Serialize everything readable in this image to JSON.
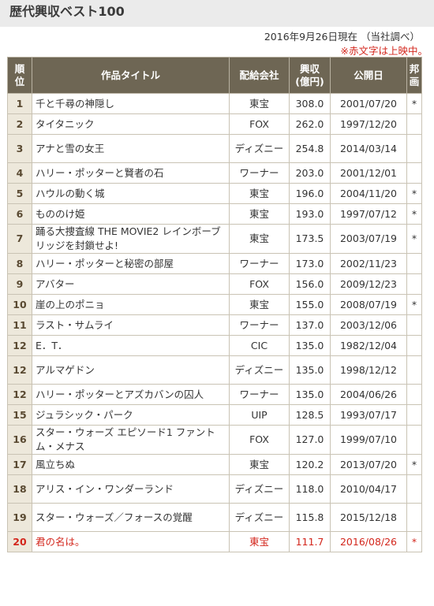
{
  "page": {
    "title": "歴代興収ベスト100",
    "as_of": "2016年9月26日現在 （当社調べ）",
    "note": "※赤文字は上映中。"
  },
  "table": {
    "headers": {
      "rank_line1": "順",
      "rank_line2": "位",
      "title": "作品タイトル",
      "distributor": "配給会社",
      "revenue_line1": "興収",
      "revenue_line2": "(億円)",
      "release": "公開日",
      "jp_line1": "邦",
      "jp_line2": "画"
    },
    "rows": [
      {
        "rank": "1",
        "title": "千と千尋の神隠し",
        "dist": "東宝",
        "rev": "308.0",
        "date": "2001/07/20",
        "jp": "*",
        "red": false
      },
      {
        "rank": "2",
        "title": "タイタニック",
        "dist": "FOX",
        "rev": "262.0",
        "date": "1997/12/20",
        "jp": "",
        "red": false
      },
      {
        "rank": "3",
        "title": "アナと雪の女王",
        "dist": "ディズニー",
        "rev": "254.8",
        "date": "2014/03/14",
        "jp": "",
        "red": false
      },
      {
        "rank": "4",
        "title": "ハリー・ポッターと賢者の石",
        "dist": "ワーナー",
        "rev": "203.0",
        "date": "2001/12/01",
        "jp": "",
        "red": false
      },
      {
        "rank": "5",
        "title": "ハウルの動く城",
        "dist": "東宝",
        "rev": "196.0",
        "date": "2004/11/20",
        "jp": "*",
        "red": false
      },
      {
        "rank": "6",
        "title": "もののけ姫",
        "dist": "東宝",
        "rev": "193.0",
        "date": "1997/07/12",
        "jp": "*",
        "red": false
      },
      {
        "rank": "7",
        "title": "踊る大捜査線 THE MOVIE2 レインボーブリッジを封鎖せよ!",
        "dist": "東宝",
        "rev": "173.5",
        "date": "2003/07/19",
        "jp": "*",
        "red": false
      },
      {
        "rank": "8",
        "title": "ハリー・ポッターと秘密の部屋",
        "dist": "ワーナー",
        "rev": "173.0",
        "date": "2002/11/23",
        "jp": "",
        "red": false
      },
      {
        "rank": "9",
        "title": "アバター",
        "dist": "FOX",
        "rev": "156.0",
        "date": "2009/12/23",
        "jp": "",
        "red": false
      },
      {
        "rank": "10",
        "title": "崖の上のポニョ",
        "dist": "東宝",
        "rev": "155.0",
        "date": "2008/07/19",
        "jp": "*",
        "red": false
      },
      {
        "rank": "11",
        "title": "ラスト・サムライ",
        "dist": "ワーナー",
        "rev": "137.0",
        "date": "2003/12/06",
        "jp": "",
        "red": false
      },
      {
        "rank": "12",
        "title": "E．T．",
        "dist": "CIC",
        "rev": "135.0",
        "date": "1982/12/04",
        "jp": "",
        "red": false
      },
      {
        "rank": "12",
        "title": "アルマゲドン",
        "dist": "ディズニー",
        "rev": "135.0",
        "date": "1998/12/12",
        "jp": "",
        "red": false
      },
      {
        "rank": "12",
        "title": "ハリー・ポッターとアズカバンの囚人",
        "dist": "ワーナー",
        "rev": "135.0",
        "date": "2004/06/26",
        "jp": "",
        "red": false
      },
      {
        "rank": "15",
        "title": "ジュラシック・パーク",
        "dist": "UIP",
        "rev": "128.5",
        "date": "1993/07/17",
        "jp": "",
        "red": false
      },
      {
        "rank": "16",
        "title": "スター・ウォーズ エピソード1 ファントム・メナス",
        "dist": "FOX",
        "rev": "127.0",
        "date": "1999/07/10",
        "jp": "",
        "red": false
      },
      {
        "rank": "17",
        "title": "風立ちぬ",
        "dist": "東宝",
        "rev": "120.2",
        "date": "2013/07/20",
        "jp": "*",
        "red": false
      },
      {
        "rank": "18",
        "title": "アリス・イン・ワンダーランド",
        "dist": "ディズニー",
        "rev": "118.0",
        "date": "2010/04/17",
        "jp": "",
        "red": false
      },
      {
        "rank": "19",
        "title": "スター・ウォーズ／フォースの覚醒",
        "dist": "ディズニー",
        "rev": "115.8",
        "date": "2015/12/18",
        "jp": "",
        "red": false
      },
      {
        "rank": "20",
        "title": "君の名は。",
        "dist": "東宝",
        "rev": "111.7",
        "date": "2016/08/26",
        "jp": "*",
        "red": true
      }
    ]
  },
  "colors": {
    "header_bg": "#6e6654",
    "rank_bg": "#ede8db",
    "highlight_red": "#d3261c",
    "title_bar_bg": "#ebebeb"
  }
}
